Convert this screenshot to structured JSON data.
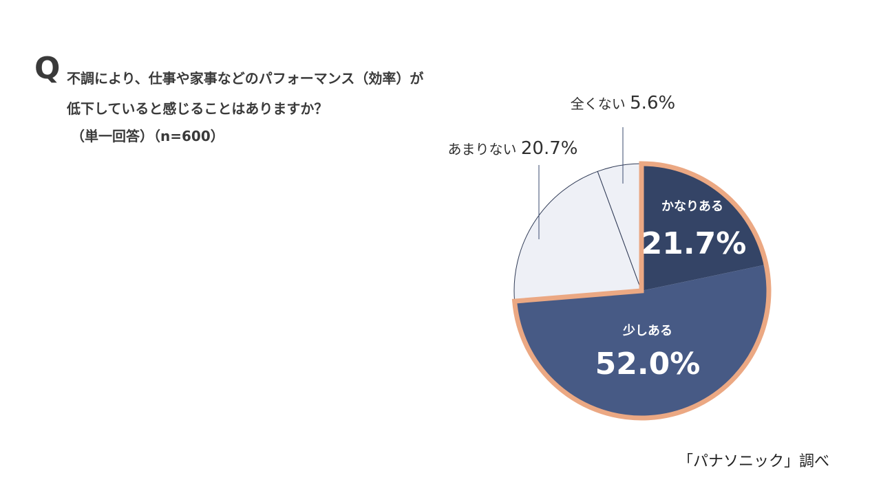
{
  "question": {
    "mark": "Q",
    "line1": "不調により、仕事や家事などのパフォーマンス（効率）が",
    "line2": "低下していると感じることはありますか？",
    "line3": "（単一回答）（n=600）"
  },
  "source": "「パナソニック」調べ",
  "colors": {
    "highlight_border": "#eba883",
    "slice_dark": "#344466",
    "slice_mid": "#475a85",
    "slice_light": "#eef0f6",
    "leader": "#3a4a6e"
  },
  "chart_data": {
    "type": "pie",
    "title": "",
    "start_angle_deg": 0,
    "direction": "clockwise",
    "slices": [
      {
        "label": "かなりある",
        "value": 21.7,
        "value_label": "21.7%",
        "color": "#344466",
        "highlight": true,
        "label_position": "inside"
      },
      {
        "label": "少しある",
        "value": 52.0,
        "value_label": "52.0%",
        "color": "#475a85",
        "highlight": true,
        "label_position": "inside"
      },
      {
        "label": "あまりない",
        "value": 20.7,
        "value_label": "20.7%",
        "color": "#eef0f6",
        "highlight": false,
        "label_position": "outside"
      },
      {
        "label": "全くない",
        "value": 5.6,
        "value_label": "5.6%",
        "color": "#eef0f6",
        "highlight": false,
        "label_position": "outside"
      }
    ]
  }
}
